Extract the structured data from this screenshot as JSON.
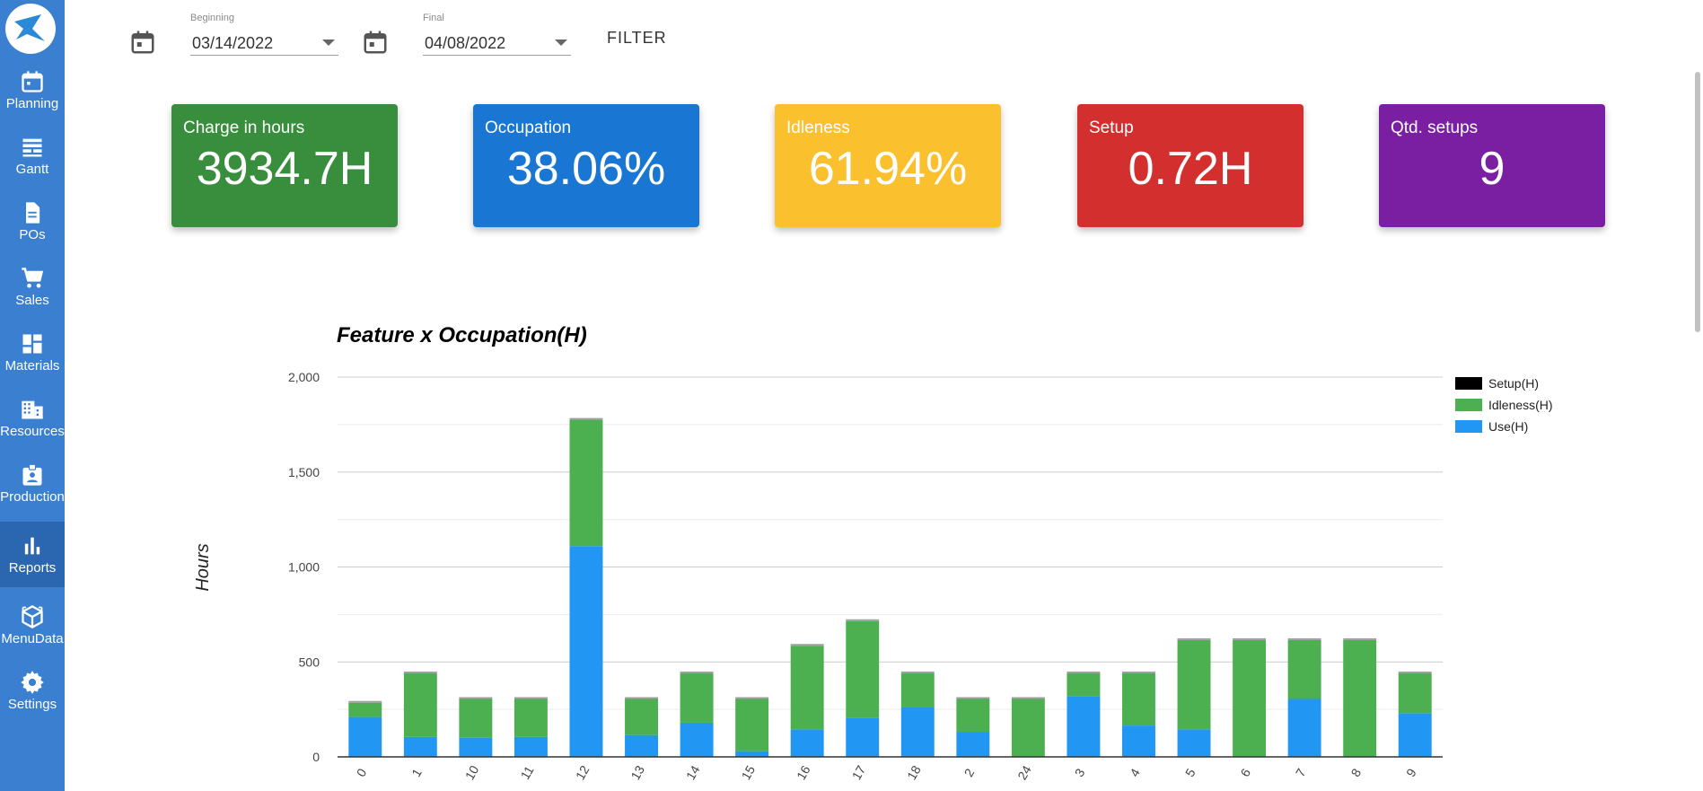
{
  "sidebar": {
    "items": [
      {
        "label": "Planning",
        "icon": "calendar-icon"
      },
      {
        "label": "Gantt",
        "icon": "gantt-icon"
      },
      {
        "label": "POs",
        "icon": "document-icon"
      },
      {
        "label": "Sales",
        "icon": "cart-icon"
      },
      {
        "label": "Materials",
        "icon": "dashboard-icon"
      },
      {
        "label": "Resources",
        "icon": "building-icon"
      },
      {
        "label": "Production",
        "icon": "badge-icon"
      },
      {
        "label": "Reports",
        "icon": "bar-chart-icon"
      },
      {
        "label": "MenuData",
        "icon": "cube-icon"
      },
      {
        "label": "Settings",
        "icon": "gear-icon"
      }
    ],
    "active": "Reports"
  },
  "filter": {
    "beginning_label": "Beginning",
    "beginning_value": "03/14/2022",
    "final_label": "Final",
    "final_value": "04/08/2022",
    "button_label": "FILTER"
  },
  "cards": [
    {
      "title": "Charge in hours",
      "value": "3934.7H",
      "color": "#388e3c"
    },
    {
      "title": "Occupation",
      "value": "38.06%",
      "color": "#1976d2"
    },
    {
      "title": "Idleness",
      "value": "61.94%",
      "color": "#fbc02d"
    },
    {
      "title": "Setup",
      "value": "0.72H",
      "color": "#d32f2f"
    },
    {
      "title": "Qtd. setups",
      "value": "9",
      "color": "#7b1fa2"
    }
  ],
  "chart_data": {
    "type": "bar",
    "stacked": true,
    "title": "Feature x Occupation(H)",
    "ylabel": "Hours",
    "xlabel": "",
    "ylim": [
      0,
      2000
    ],
    "yticks": [
      0,
      500,
      1000,
      1500,
      2000
    ],
    "ytick_labels": [
      "0",
      "500",
      "1,000",
      "1,500",
      "2,000"
    ],
    "grid": true,
    "legend_position": "right",
    "categories": [
      "0",
      "1",
      "10",
      "11",
      "12",
      "13",
      "14",
      "15",
      "16",
      "17",
      "18",
      "2",
      "24",
      "3",
      "4",
      "5",
      "6",
      "7",
      "8",
      "9"
    ],
    "series": [
      {
        "name": "Use(H)",
        "color": "#2196f3",
        "values": [
          210,
          105,
          100,
          105,
          1110,
          115,
          180,
          30,
          145,
          205,
          260,
          130,
          0,
          320,
          165,
          145,
          0,
          305,
          0,
          230
        ]
      },
      {
        "name": "Idleness(H)",
        "color": "#4caf50",
        "values": [
          75,
          335,
          205,
          200,
          665,
          190,
          260,
          275,
          440,
          510,
          180,
          175,
          305,
          120,
          275,
          470,
          615,
          310,
          615,
          210
        ]
      },
      {
        "name": "Setup(H)",
        "color": "#000000",
        "values": [
          0,
          0,
          0,
          0,
          0,
          0,
          0,
          0,
          0,
          0,
          0,
          0,
          0,
          0,
          0,
          0,
          0,
          0,
          0,
          0
        ]
      }
    ],
    "legend_order": [
      "Setup(H)",
      "Idleness(H)",
      "Use(H)"
    ]
  }
}
